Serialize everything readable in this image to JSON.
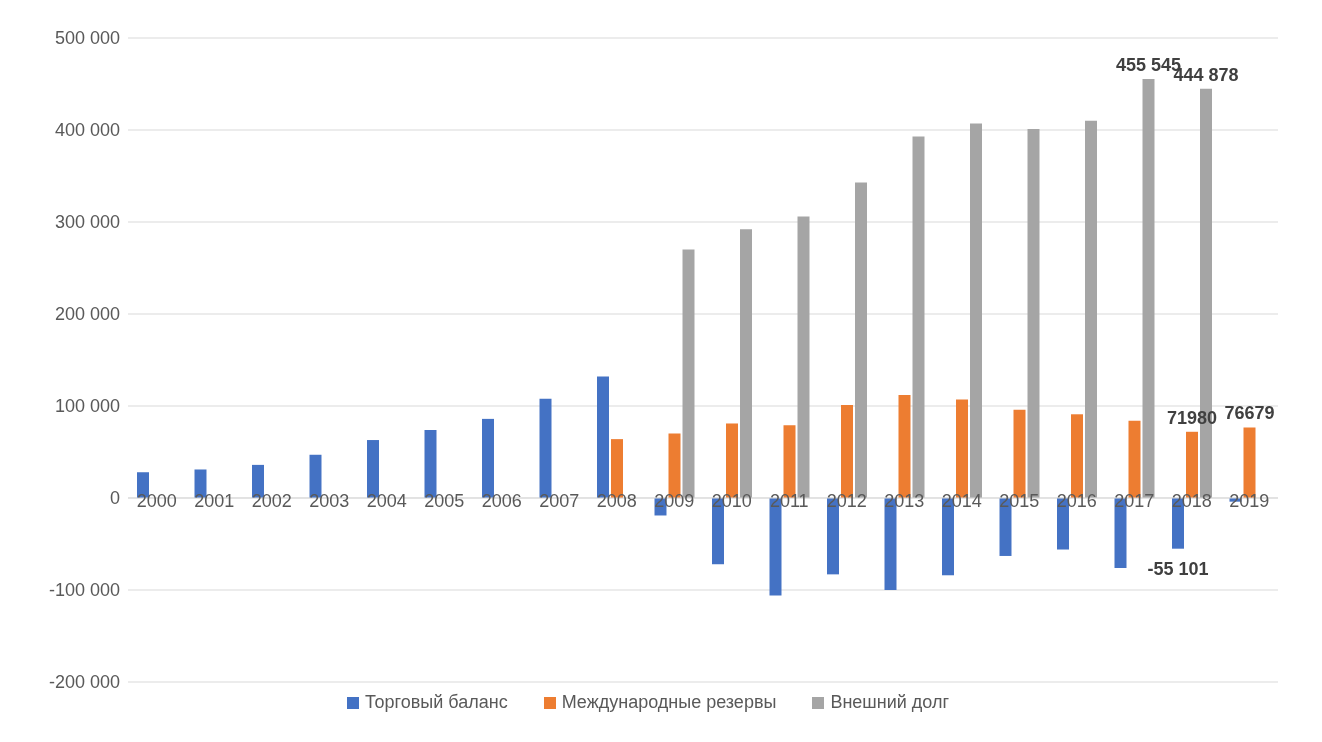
{
  "chart_data": {
    "type": "bar",
    "categories": [
      "2000",
      "2001",
      "2002",
      "2003",
      "2004",
      "2005",
      "2006",
      "2007",
      "2008",
      "2009",
      "2010",
      "2011",
      "2012",
      "2013",
      "2014",
      "2015",
      "2016",
      "2017",
      "2018",
      "2019"
    ],
    "series": [
      {
        "name": "Торговый баланс",
        "color": "#4472c4",
        "values": [
          28000,
          31000,
          36000,
          47000,
          63000,
          74000,
          86000,
          108000,
          132000,
          -19000,
          -72000,
          -106000,
          -83000,
          -100000,
          -84000,
          -63000,
          -56000,
          -76000,
          -55101,
          -4000
        ],
        "value_labels": [
          null,
          null,
          null,
          null,
          null,
          null,
          null,
          null,
          null,
          null,
          null,
          null,
          null,
          null,
          null,
          null,
          null,
          null,
          "-55 101",
          null
        ]
      },
      {
        "name": "Международные резервы",
        "color": "#ed7d31",
        "values": [
          null,
          null,
          null,
          null,
          null,
          null,
          null,
          null,
          64000,
          70000,
          81000,
          79000,
          101000,
          112000,
          107000,
          96000,
          91000,
          84000,
          71980,
          76679
        ],
        "value_labels": [
          null,
          null,
          null,
          null,
          null,
          null,
          null,
          null,
          null,
          null,
          null,
          null,
          null,
          null,
          null,
          null,
          null,
          null,
          "71980",
          "76679"
        ]
      },
      {
        "name": "Внешний долг",
        "color": "#a5a5a5",
        "values": [
          null,
          null,
          null,
          null,
          null,
          null,
          null,
          null,
          null,
          270000,
          292000,
          306000,
          343000,
          393000,
          407000,
          401000,
          410000,
          455545,
          444878,
          null
        ],
        "value_labels": [
          null,
          null,
          null,
          null,
          null,
          null,
          null,
          null,
          null,
          null,
          null,
          null,
          null,
          null,
          null,
          null,
          null,
          "455 545",
          "444 878",
          null
        ]
      }
    ],
    "ylim": [
      -200000,
      500000
    ],
    "yticks": [
      {
        "value": -200000,
        "label": "-200 000"
      },
      {
        "value": -100000,
        "label": "-100 000"
      },
      {
        "value": 0,
        "label": "0"
      },
      {
        "value": 100000,
        "label": "100 000"
      },
      {
        "value": 200000,
        "label": "200 000"
      },
      {
        "value": 300000,
        "label": "300 000"
      },
      {
        "value": 400000,
        "label": "400 000"
      },
      {
        "value": 500000,
        "label": "500 000"
      }
    ],
    "grid": "y",
    "legend": "bottom"
  }
}
